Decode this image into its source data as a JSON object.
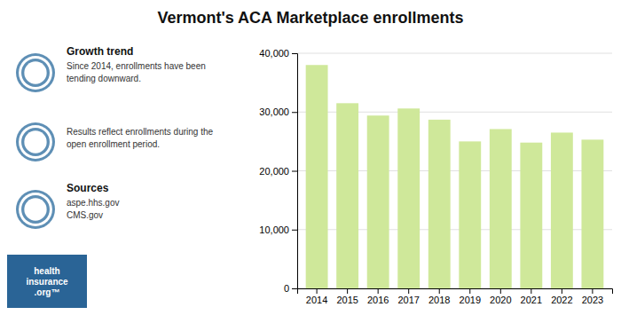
{
  "chart_data": {
    "type": "bar",
    "title": "Vermont's ACA Marketplace enrollments",
    "categories": [
      "2014",
      "2015",
      "2016",
      "2017",
      "2018",
      "2019",
      "2020",
      "2021",
      "2022",
      "2023"
    ],
    "values": [
      38000,
      31500,
      29400,
      30600,
      28700,
      25000,
      27100,
      24800,
      26500,
      25300
    ],
    "color": "#cfe89a",
    "ylim": [
      0,
      40000
    ],
    "yticks": [
      0,
      {
        "value": 10000,
        "label": "10,000"
      },
      {
        "value": 20000,
        "label": "20,000"
      },
      {
        "value": 30000,
        "label": "30,000"
      },
      {
        "value": 40000,
        "label": "40,000"
      }
    ],
    "grid": true,
    "annotations": [
      {
        "title": "Growth trend",
        "text": "Since 2014, enrollments have been\ntending downward."
      },
      {
        "text": "Results reflect enrollments during the\nopen enrollment period."
      },
      {
        "title": "Sources",
        "text": "aspe.hhs.gov\nCMS.gov"
      }
    ],
    "footer": "health\ninsurance\n.org™"
  }
}
